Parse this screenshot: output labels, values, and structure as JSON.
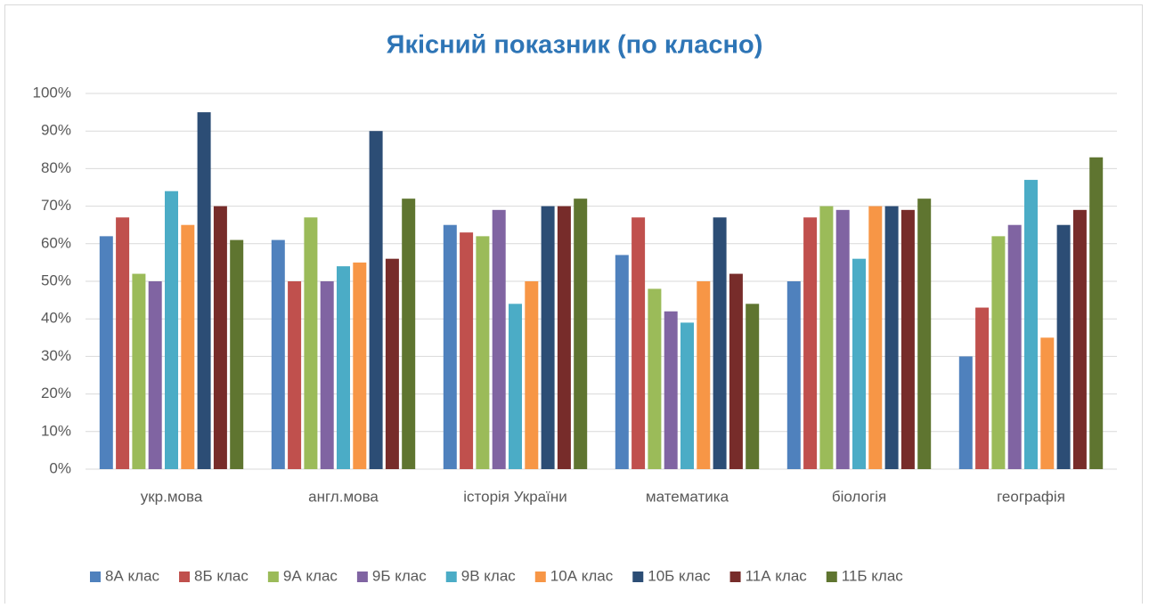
{
  "chart_data": {
    "type": "bar",
    "title": "Якісний показник (по класно)",
    "categories": [
      "укр.мова",
      "англ.мова",
      "історія України",
      "математика",
      "біологія",
      "географія"
    ],
    "series": [
      {
        "name": "8А клас",
        "color": "#4f81bd",
        "values": [
          62,
          61,
          65,
          57,
          50,
          30
        ]
      },
      {
        "name": "8Б клас",
        "color": "#c0504d",
        "values": [
          67,
          50,
          63,
          67,
          67,
          43
        ]
      },
      {
        "name": "9А клас",
        "color": "#9bbb59",
        "values": [
          52,
          67,
          62,
          48,
          70,
          62
        ]
      },
      {
        "name": "9Б клас",
        "color": "#8064a2",
        "values": [
          50,
          50,
          69,
          42,
          69,
          65
        ]
      },
      {
        "name": "9В клас",
        "color": "#4bacc6",
        "values": [
          74,
          54,
          44,
          39,
          56,
          77
        ]
      },
      {
        "name": "10А клас",
        "color": "#f79646",
        "values": [
          65,
          55,
          50,
          50,
          70,
          35
        ]
      },
      {
        "name": "10Б клас",
        "color": "#2c4d75",
        "values": [
          95,
          90,
          70,
          67,
          70,
          65
        ]
      },
      {
        "name": "11А клас",
        "color": "#772c2a",
        "values": [
          70,
          56,
          70,
          52,
          69,
          69
        ]
      },
      {
        "name": "11Б клас",
        "color": "#5f7530",
        "values": [
          61,
          72,
          72,
          44,
          72,
          83
        ]
      }
    ],
    "ylim": [
      0,
      100
    ],
    "yticks": [
      {
        "value": 0,
        "label": "0%"
      },
      {
        "value": 10,
        "label": "10%"
      },
      {
        "value": 20,
        "label": "20%"
      },
      {
        "value": 30,
        "label": "30%"
      },
      {
        "value": 40,
        "label": "40%"
      },
      {
        "value": 50,
        "label": "50%"
      },
      {
        "value": 60,
        "label": "60%"
      },
      {
        "value": 70,
        "label": "70%"
      },
      {
        "value": 80,
        "label": "80%"
      },
      {
        "value": 90,
        "label": "90%"
      },
      {
        "value": 100,
        "label": "100%"
      }
    ],
    "grid": true,
    "legend": "bottom"
  }
}
